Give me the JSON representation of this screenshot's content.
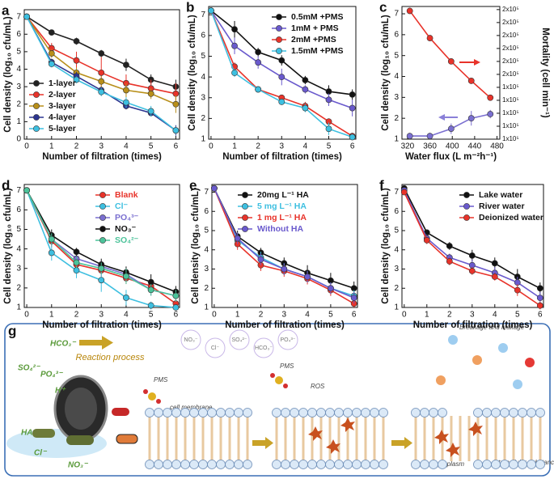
{
  "chart_data": [
    {
      "type": "line",
      "label": "a",
      "xlabel": "Number of filtration (times)",
      "ylabel": "Cell density (log₁₀ cfu/mL)",
      "x": [
        0,
        1,
        2,
        3,
        4,
        5,
        6
      ],
      "xlim": [
        -0.1,
        6.15
      ],
      "xticks": [
        0,
        1,
        2,
        3,
        4,
        5,
        6
      ],
      "ylim": [
        0,
        7.4
      ],
      "yticks": [
        0,
        1,
        2,
        3,
        4,
        5,
        6,
        7
      ],
      "legend": "lower left",
      "legend_text_colored": false,
      "series": [
        {
          "name": "1-layer",
          "color": "#222222",
          "values": [
            7,
            6.1,
            5.6,
            4.9,
            4.25,
            3.4,
            3.0
          ],
          "errors": [
            0.1,
            0.15,
            0.2,
            0.2,
            0.35,
            0.3,
            0.4
          ]
        },
        {
          "name": "2-layer",
          "color": "#e8332a",
          "values": [
            7,
            5.2,
            4.5,
            3.8,
            3.2,
            2.9,
            2.6
          ],
          "errors": [
            0.1,
            0.3,
            0.5,
            0.9,
            0.5,
            0.5,
            0.6
          ]
        },
        {
          "name": "3-layer",
          "color": "#b88f1a",
          "values": [
            7,
            4.9,
            3.8,
            3.3,
            2.8,
            2.6,
            2.0
          ],
          "errors": [
            0.1,
            0.25,
            0.3,
            0.3,
            0.4,
            0.3,
            0.5
          ]
        },
        {
          "name": "4-layer",
          "color": "#2c3590",
          "values": [
            7,
            4.4,
            3.6,
            2.8,
            1.9,
            1.5,
            0.5
          ],
          "errors": [
            0.1,
            0.2,
            0.25,
            0.2,
            0.2,
            0.2,
            0.3
          ]
        },
        {
          "name": "5-layer",
          "color": "#3dbfe0",
          "values": [
            7,
            4.3,
            3.4,
            2.7,
            2.1,
            1.6,
            0.5
          ],
          "errors": [
            0.1,
            0.2,
            0.2,
            0.25,
            0.3,
            0.3,
            0.2
          ]
        }
      ]
    },
    {
      "type": "line",
      "label": "b",
      "xlabel": "Number of filtration (times)",
      "ylabel": "Cell density (log₁₀ cfu/mL)",
      "x": [
        0,
        1,
        2,
        3,
        4,
        5,
        6
      ],
      "xlim": [
        -0.1,
        6.15
      ],
      "xticks": [
        0,
        1,
        2,
        3,
        4,
        5,
        6
      ],
      "ylim": [
        1,
        7.4
      ],
      "yticks": [
        1,
        2,
        3,
        4,
        5,
        6,
        7
      ],
      "legend": "upper right",
      "legend_text_colored": false,
      "series": [
        {
          "name": "0.5mM +PMS",
          "color": "#111111",
          "values": [
            7.2,
            6.3,
            5.2,
            4.8,
            3.85,
            3.3,
            3.15
          ],
          "errors": [
            0.1,
            0.4,
            0.2,
            0.25,
            0.2,
            0.3,
            0.25
          ]
        },
        {
          "name": "1mM  + PMS",
          "color": "#6a5acd",
          "values": [
            7.2,
            5.5,
            4.7,
            4.0,
            3.4,
            2.9,
            2.5
          ],
          "errors": [
            0.1,
            0.4,
            0.3,
            0.4,
            0.2,
            0.3,
            0.4
          ]
        },
        {
          "name": "2mM  +PMS",
          "color": "#e8332a",
          "values": [
            7.2,
            4.5,
            3.4,
            3.0,
            2.6,
            1.85,
            1.15
          ],
          "errors": [
            0.1,
            0.2,
            0.15,
            0.1,
            0.2,
            0.15,
            0.15
          ]
        },
        {
          "name": "1.5mM +PMS",
          "color": "#3dbfe0",
          "values": [
            7.2,
            4.2,
            3.4,
            2.8,
            2.5,
            1.5,
            1.1
          ],
          "errors": [
            0.1,
            0.2,
            0.15,
            0.15,
            0.2,
            0.3,
            0.1
          ]
        }
      ]
    },
    {
      "type": "line",
      "label": "c",
      "xlabel": "Water flux (L m⁻²h⁻¹)",
      "ylabel": "Cell density (log₁₀ cfu/mL)",
      "y2label": "Mortality (cell min⁻¹)",
      "x": [
        324,
        360,
        398,
        434,
        468
      ],
      "xlim": [
        310,
        485
      ],
      "xticks": [
        320,
        360,
        400,
        440,
        480
      ],
      "ylim": [
        1,
        7.35
      ],
      "yticks": [
        1,
        2,
        3,
        4,
        5,
        6,
        7
      ],
      "y2lim": [
        100000,
        202400
      ],
      "y2ticks": [
        {
          "value": 100000,
          "label": "1x10⁵"
        },
        {
          "value": 110000,
          "label": "1x10⁵"
        },
        {
          "value": 120000,
          "label": "1x10⁵"
        },
        {
          "value": 130000,
          "label": "1x10⁵"
        },
        {
          "value": 140000,
          "label": "1x10⁵"
        },
        {
          "value": 150000,
          "label": "2x10⁵"
        },
        {
          "value": 160000,
          "label": "2x10⁵"
        },
        {
          "value": 170000,
          "label": "2x10⁵"
        },
        {
          "value": 180000,
          "label": "2x10⁵"
        },
        {
          "value": 190000,
          "label": "2x10⁵"
        },
        {
          "value": 200000,
          "label": "2x10⁵"
        }
      ],
      "series": [
        {
          "color": "#e8332a",
          "axis": "y2",
          "values": [
            199000,
            178000,
            160000,
            145000,
            132000
          ]
        },
        {
          "color": "#7a6fd0",
          "values": [
            1.15,
            1.15,
            1.5,
            2.0,
            2.2
          ],
          "errors": [
            0.15,
            0.15,
            0.25,
            0.35,
            0.2
          ]
        }
      ]
    },
    {
      "type": "line",
      "label": "d",
      "xlabel": "Number of filtration (times)",
      "ylabel": "Cell density (log₁₀ cfu/mL)",
      "x": [
        0,
        1,
        2,
        3,
        4,
        5,
        6
      ],
      "xlim": [
        -0.1,
        6.15
      ],
      "xticks": [
        0,
        1,
        2,
        3,
        4,
        5,
        6
      ],
      "ylim": [
        1,
        7.3
      ],
      "yticks": [
        1,
        2,
        3,
        4,
        5,
        6,
        7
      ],
      "legend": "upper right",
      "legend_text_colored": true,
      "series": [
        {
          "name": "Blank",
          "color": "#e8332a",
          "values": [
            7,
            4.4,
            3.2,
            2.9,
            2.5,
            2.1,
            1.2
          ],
          "errors": [
            0.1,
            0.3,
            0.2,
            0.3,
            0.3,
            0.3,
            0.2
          ]
        },
        {
          "name": "Cl⁻",
          "color": "#3dbfe0",
          "values": [
            7,
            3.8,
            2.9,
            2.4,
            1.5,
            1.1,
            1.0
          ],
          "errors": [
            0.1,
            0.4,
            0.4,
            0.6,
            0.4,
            0.2,
            0.1
          ]
        },
        {
          "name": "PO₄³⁻",
          "color": "#7a6fd0",
          "values": [
            7,
            4.5,
            3.5,
            3.1,
            2.7,
            1.9,
            1.6
          ],
          "errors": [
            0.1,
            0.3,
            0.3,
            0.3,
            0.3,
            0.3,
            0.3
          ]
        },
        {
          "name": "NO₃⁻",
          "color": "#111111",
          "values": [
            7,
            4.7,
            3.85,
            3.2,
            2.8,
            2.3,
            1.8
          ],
          "errors": [
            0.1,
            0.3,
            0.2,
            0.3,
            0.3,
            0.4,
            0.3
          ]
        },
        {
          "name": "SO₄²⁻",
          "color": "#4cc39a",
          "values": [
            7,
            4.5,
            3.3,
            3.0,
            2.6,
            1.9,
            1.6
          ],
          "errors": [
            0.1,
            0.3,
            0.3,
            0.3,
            0.4,
            0.3,
            0.3
          ]
        }
      ]
    },
    {
      "type": "line",
      "label": "e",
      "xlabel": "Number of filtration (times)",
      "ylabel": "Cell density (log₁₀ cfu/mL)",
      "x": [
        0,
        1,
        2,
        3,
        4,
        5,
        6
      ],
      "xlim": [
        -0.1,
        6.15
      ],
      "xticks": [
        0,
        1,
        2,
        3,
        4,
        5,
        6
      ],
      "ylim": [
        1,
        7.4
      ],
      "yticks": [
        1,
        2,
        3,
        4,
        5,
        6,
        7
      ],
      "legend": "upper center",
      "legend_text_colored": true,
      "series": [
        {
          "name": "20mg L⁻¹   HA",
          "color": "#111111",
          "values": [
            7.2,
            4.7,
            3.85,
            3.3,
            2.8,
            2.4,
            2.0
          ],
          "errors": [
            0.15,
            0.3,
            0.25,
            0.3,
            0.4,
            0.4,
            0.35
          ]
        },
        {
          "name": "5 mg L⁻¹   HA",
          "color": "#3dbfe0",
          "values": [
            7.2,
            4.5,
            3.6,
            3.0,
            2.6,
            2.0,
            1.6
          ],
          "errors": [
            0.15,
            0.3,
            0.3,
            0.3,
            0.3,
            0.3,
            0.3
          ]
        },
        {
          "name": "1 mg L⁻¹   HA",
          "color": "#e8332a",
          "values": [
            7.2,
            4.3,
            3.2,
            2.9,
            2.5,
            1.9,
            1.2
          ],
          "errors": [
            0.15,
            0.3,
            0.3,
            0.3,
            0.3,
            0.3,
            0.2
          ]
        },
        {
          "name": "Without   HA",
          "color": "#6a5acd",
          "values": [
            7.2,
            4.6,
            3.5,
            3.0,
            2.6,
            2.0,
            1.5
          ],
          "errors": [
            0.15,
            0.3,
            0.3,
            0.3,
            0.3,
            0.3,
            0.3
          ]
        }
      ]
    },
    {
      "type": "line",
      "label": "f",
      "xlabel": "Number of filtration (times)",
      "ylabel": "Cell density (log₁₀ cfu/mL)",
      "x": [
        0,
        1,
        2,
        3,
        4,
        5,
        6
      ],
      "xlim": [
        -0.1,
        6.15
      ],
      "xticks": [
        0,
        1,
        2,
        3,
        4,
        5,
        6
      ],
      "ylim": [
        1,
        7.4
      ],
      "yticks": [
        1,
        2,
        3,
        4,
        5,
        6,
        7
      ],
      "legend": "upper right",
      "legend_text_colored": false,
      "series": [
        {
          "name": "Lake water",
          "color": "#111111",
          "values": [
            7.2,
            4.9,
            4.2,
            3.7,
            3.3,
            2.6,
            2.0
          ],
          "errors": [
            0.1,
            0.15,
            0.2,
            0.3,
            0.3,
            0.4,
            0.3
          ]
        },
        {
          "name": "River water",
          "color": "#6a5acd",
          "values": [
            7.1,
            4.6,
            3.6,
            3.2,
            2.8,
            2.3,
            1.5
          ],
          "errors": [
            0.1,
            0.2,
            0.2,
            0.3,
            0.3,
            0.3,
            0.3
          ]
        },
        {
          "name": "Deionized water",
          "color": "#e8332a",
          "values": [
            7.0,
            4.5,
            3.4,
            2.9,
            2.6,
            1.9,
            1.1
          ],
          "errors": [
            0.1,
            0.2,
            0.2,
            0.2,
            0.2,
            0.3,
            0.2
          ]
        }
      ]
    }
  ],
  "diagram": {
    "label": "g",
    "process": "Reaction process",
    "pms_1": "PMS",
    "membrane": "cell membrane",
    "pms_2": "PMS",
    "ros": "ROS",
    "breakage": "Breakage and leakage",
    "cytoplasm": "cytoplasm",
    "substance": "intracellular substance",
    "ions_left": [
      "HCO₃⁻",
      "SO₄²⁻",
      "PO₄³⁻",
      "H⁺",
      "HA",
      "Cl⁻",
      "NO₃⁻"
    ],
    "ions_floating": [
      "NO₃⁻",
      "Cl⁻",
      "SO₄²⁻",
      "HCO₃⁻",
      "PO₄³⁻"
    ]
  }
}
